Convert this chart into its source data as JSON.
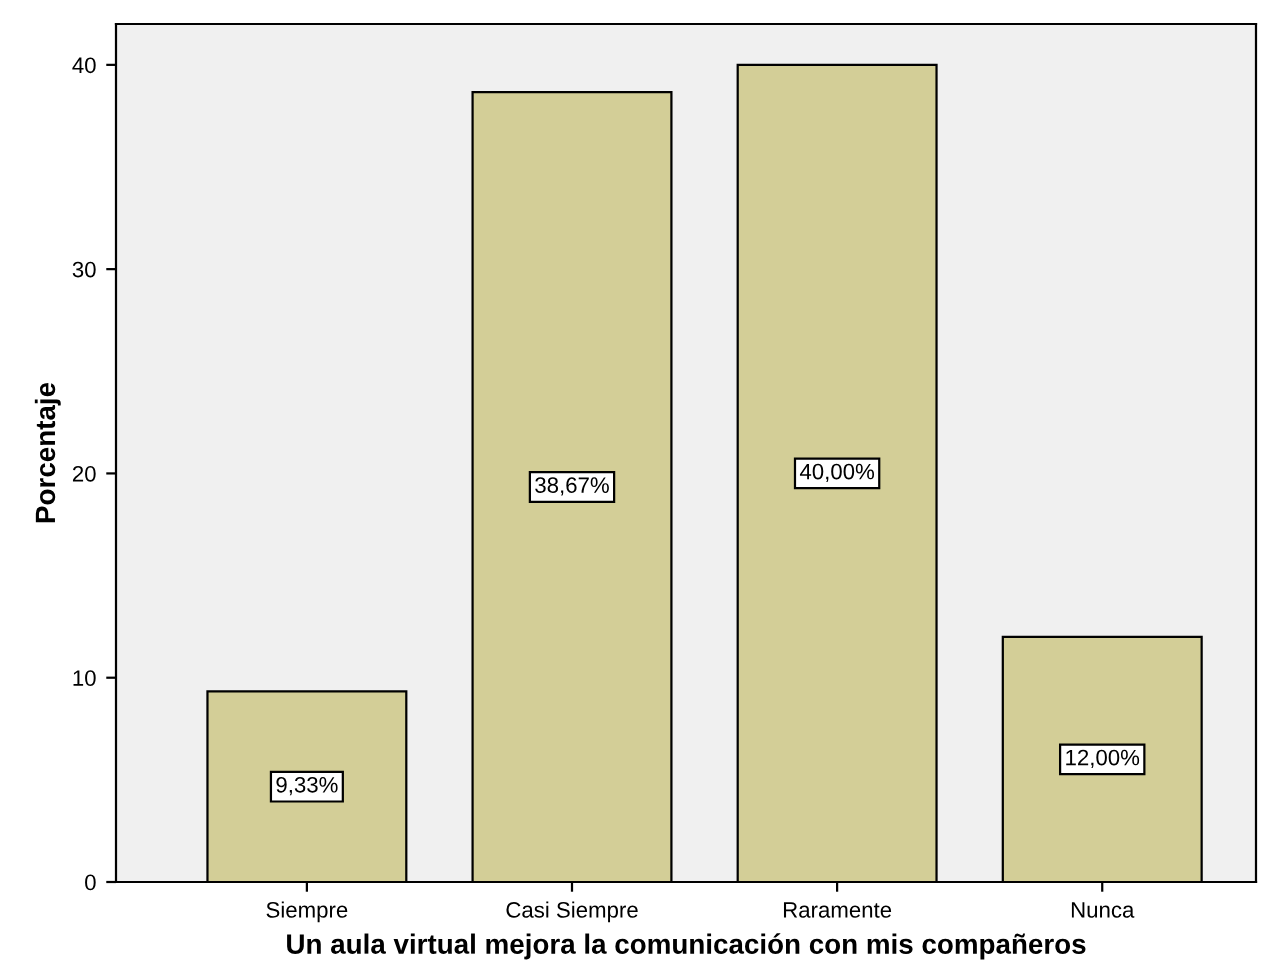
{
  "chart_data": {
    "type": "bar",
    "xlabel": "Un aula virtual mejora la comunicación con mis compañeros",
    "ylabel": "Porcentaje",
    "categories": [
      "Siempre",
      "Casi Siempre",
      "Raramente",
      "Nunca"
    ],
    "values": [
      9.33,
      38.67,
      40.0,
      12.0
    ],
    "value_labels": [
      "9,33%",
      "38,67%",
      "40,00%",
      "12,00%"
    ],
    "color": "#d3ce97",
    "ylim": [
      0,
      42
    ],
    "yticks": [
      0,
      10,
      20,
      30,
      40
    ],
    "grid": false,
    "legend": false
  }
}
